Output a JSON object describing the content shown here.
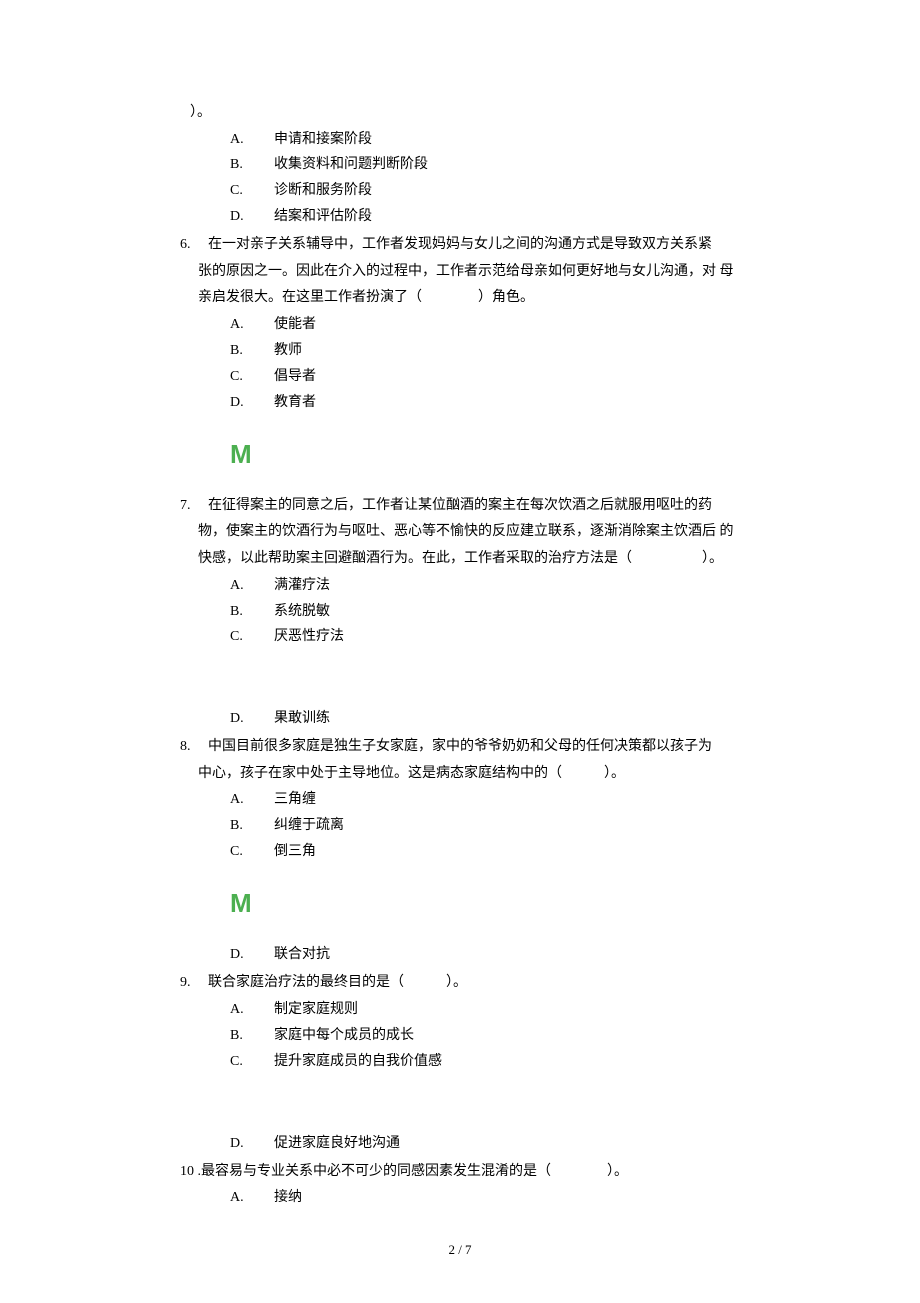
{
  "page": {
    "footer": "2 / 7"
  },
  "q5tail": {
    "intro": "）。",
    "options": [
      {
        "label": "A.",
        "text": "申请和接案阶段"
      },
      {
        "label": "B.",
        "text": "收集资料和问题判断阶段"
      },
      {
        "label": "C.",
        "text": "诊断和服务阶段"
      },
      {
        "label": "D.",
        "text": "结案和评估阶段"
      }
    ]
  },
  "q6": {
    "num": "6.",
    "stem1": "在一对亲子关系辅导中，工作者发现妈妈与女儿之间的沟通方式是导致双方关系紧",
    "stem2": "张的原因之一。因此在介入的过程中，工作者示范给母亲如何更好地与女儿沟通，对 母亲启发很大。在这里工作者扮演了（　　　　）角色。",
    "options": [
      {
        "label": "A.",
        "text": "使能者"
      },
      {
        "label": "B.",
        "text": "教师"
      },
      {
        "label": "C.",
        "text": "倡导者"
      },
      {
        "label": "D.",
        "text": "教育者"
      }
    ]
  },
  "marker1": "M",
  "q7": {
    "num": "7.",
    "stem1": "在征得案主的同意之后，工作者让某位酗酒的案主在每次饮酒之后就服用呕吐的药",
    "stem2": "物，使案主的饮酒行为与呕吐、恶心等不愉快的反应建立联系，逐渐消除案主饮酒后 的快感，以此帮助案主回避酗酒行为。在此，工作者采取的治疗方法是（　　　　　）。",
    "options_abc": [
      {
        "label": "A.",
        "text": "满灌疗法"
      },
      {
        "label": "B.",
        "text": "系统脱敏"
      },
      {
        "label": "C.",
        "text": "厌恶性疗法"
      }
    ],
    "options_d": [
      {
        "label": "D.",
        "text": "果敢训练"
      }
    ]
  },
  "q8": {
    "num": "8.",
    "stem1": "中国目前很多家庭是独生子女家庭，家中的爷爷奶奶和父母的任何决策都以孩子为",
    "stem2": "中心，孩子在家中处于主导地位。这是病态家庭结构中的（　　　）。",
    "options_abc": [
      {
        "label": "A.",
        "text": "三角缠"
      },
      {
        "label": "B.",
        "text": "纠缠于疏离"
      },
      {
        "label": "C.",
        "text": "倒三角"
      }
    ],
    "options_d": [
      {
        "label": "D.",
        "text": "联合对抗"
      }
    ]
  },
  "marker2": "M",
  "q9": {
    "num": "9.",
    "stem1": "联合家庭治疗法的最终目的是（　　　）。",
    "options_abc": [
      {
        "label": "A.",
        "text": "制定家庭规则"
      },
      {
        "label": "B.",
        "text": "家庭中每个成员的成长"
      },
      {
        "label": "C.",
        "text": "提升家庭成员的自我价值感"
      }
    ],
    "options_d": [
      {
        "label": "D.",
        "text": "促进家庭良好地沟通"
      }
    ]
  },
  "q10": {
    "num": "10 .",
    "stem1": "最容易与专业关系中必不可少的同感因素发生混淆的是（　　　　）。",
    "options": [
      {
        "label": "A.",
        "text": "接纳"
      }
    ]
  }
}
